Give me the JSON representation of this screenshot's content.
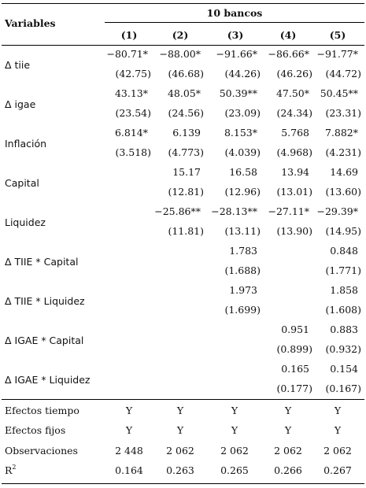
{
  "header": {
    "variables_label": "Variables",
    "group_label": "10 bancos",
    "columns": [
      "(1)",
      "(2)",
      "(3)",
      "(4)",
      "(5)"
    ]
  },
  "rows": [
    {
      "label": "Δ tiie",
      "sans": true,
      "coef": [
        "−80.71*",
        "−88.00*",
        "−91.66*",
        "−86.66*",
        "−91.77*"
      ],
      "se": [
        "(42.75)",
        "(46.68)",
        "(44.26)",
        "(46.26)",
        "(44.72)"
      ]
    },
    {
      "label": "Δ igae",
      "sans": true,
      "coef": [
        "43.13*",
        "48.05*",
        "50.39**",
        "47.50*",
        "50.45**"
      ],
      "se": [
        "(23.54)",
        "(24.56)",
        "(23.09)",
        "(24.34)",
        "(23.31)"
      ]
    },
    {
      "label": "Inflación",
      "sans": true,
      "coef": [
        "6.814*",
        "6.139",
        "8.153*",
        "5.768",
        "7.882*"
      ],
      "se": [
        "(3.518)",
        "(4.773)",
        "(4.039)",
        "(4.968)",
        "(4.231)"
      ]
    },
    {
      "label": "Capital",
      "sans": true,
      "coef": [
        "",
        "15.17",
        "16.58",
        "13.94",
        "14.69"
      ],
      "se": [
        "",
        "(12.81)",
        "(12.96)",
        "(13.01)",
        "(13.60)"
      ]
    },
    {
      "label": "Liquidez",
      "sans": true,
      "coef": [
        "",
        "−25.86**",
        "−28.13**",
        "−27.11*",
        "−29.39*"
      ],
      "se": [
        "",
        "(11.81)",
        "(13.11)",
        "(13.90)",
        "(14.95)"
      ]
    },
    {
      "label": "Δ TIIE * Capital",
      "sans": true,
      "coef": [
        "",
        "",
        "1.783",
        "",
        "0.848"
      ],
      "se": [
        "",
        "",
        "(1.688)",
        "",
        "(1.771)"
      ]
    },
    {
      "label": "Δ TIIE * Liquidez",
      "sans": true,
      "coef": [
        "",
        "",
        "1.973",
        "",
        "1.858"
      ],
      "se": [
        "",
        "",
        "(1.699)",
        "",
        "(1.608)"
      ]
    },
    {
      "label": "Δ IGAE * Capital",
      "sans": true,
      "coef": [
        "",
        "",
        "",
        "0.951",
        "0.883"
      ],
      "se": [
        "",
        "",
        "",
        "(0.899)",
        "(0.932)"
      ]
    },
    {
      "label": "Δ IGAE * Liquidez",
      "sans": true,
      "coef": [
        "",
        "",
        "",
        "0.165",
        "0.154"
      ],
      "se": [
        "",
        "",
        "",
        "(0.177)",
        "(0.167)"
      ]
    }
  ],
  "footer": [
    {
      "label": "Efectos tiempo",
      "values": [
        "Y",
        "Y",
        "Y",
        "Y",
        "Y"
      ]
    },
    {
      "label": "Efectos fijos",
      "values": [
        "Y",
        "Y",
        "Y",
        "Y",
        "Y"
      ]
    },
    {
      "label": "Observaciones",
      "values": [
        "2 448",
        "2 062",
        "2 062",
        "2 062",
        "2 062"
      ]
    },
    {
      "label": "R",
      "label_sup": "2",
      "values": [
        "0.164",
        "0.263",
        "0.265",
        "0.266",
        "0.267"
      ]
    }
  ]
}
